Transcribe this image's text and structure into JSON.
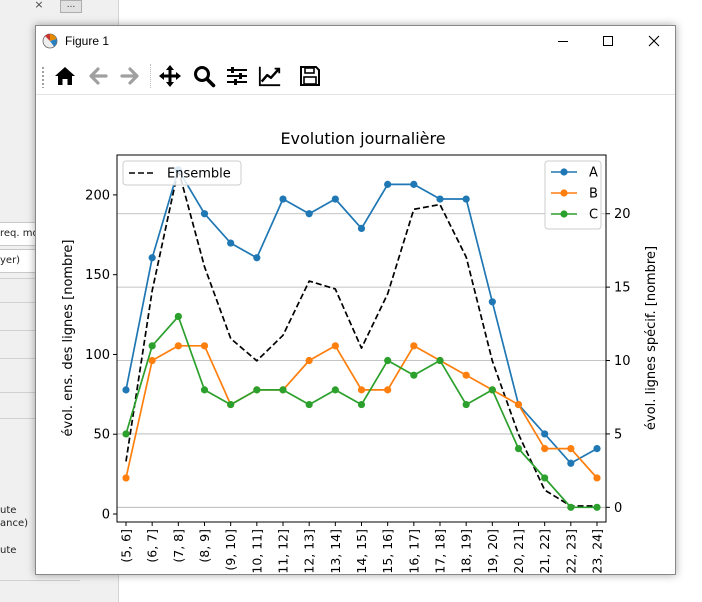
{
  "background": {
    "top_close_glyph": "×",
    "top_button_label": "...",
    "left_panel_labels": [
      "req. mo",
      "yer)",
      "ute",
      "ance)",
      "ute"
    ]
  },
  "window": {
    "title": "Figure 1",
    "controls": {
      "minimize": "—",
      "maximize": "☐",
      "close": "✕"
    },
    "toolbar": {
      "buttons": [
        "home-icon",
        "back-icon",
        "forward-icon",
        "pan-icon",
        "zoom-icon",
        "subplots-icon",
        "customize-icon",
        "save-icon"
      ]
    }
  },
  "chart_data": {
    "type": "line",
    "title": "Evolution journalière",
    "xlabel": "",
    "ylabel_left": "évol. ens. des lignes [nombre]",
    "ylabel_right": "évol. lignes spécif. [nombre]",
    "categories": [
      "(5, 6]",
      "(6, 7]",
      "(7, 8]",
      "(8, 9]",
      "(9, 10]",
      "(10, 11]",
      "(11, 12]",
      "(12, 13]",
      "(13, 14]",
      "(14, 15]",
      "(15, 16]",
      "(16, 17]",
      "(17, 18]",
      "(18, 19]",
      "(19, 20]",
      "(20, 21]",
      "(21, 22]",
      "(22, 23]",
      "(23, 24]"
    ],
    "left_axis": {
      "ylim": [
        -5,
        225
      ],
      "ticks": [
        0,
        50,
        100,
        150,
        200
      ]
    },
    "right_axis": {
      "ylim": [
        -1,
        24
      ],
      "ticks": [
        0,
        5,
        10,
        15,
        20
      ]
    },
    "grid": "horizontal on right-axis ticks",
    "legend_left": {
      "placement": "upper left",
      "entries": [
        "Ensemble"
      ]
    },
    "legend_right": {
      "placement": "upper right",
      "entries": [
        "A",
        "B",
        "C"
      ]
    },
    "series": [
      {
        "name": "Ensemble",
        "axis": "left",
        "style": "dashed",
        "color": "#000000",
        "values": [
          33,
          140,
          216,
          155,
          110,
          96,
          112,
          146,
          141,
          104,
          138,
          191,
          194,
          161,
          96,
          50,
          15,
          5,
          5
        ]
      },
      {
        "name": "A",
        "axis": "right",
        "style": "solid-marker",
        "color": "#1f77b4",
        "values": [
          8,
          17,
          23,
          20,
          18,
          17,
          21,
          20,
          21,
          19,
          22,
          22,
          21,
          21,
          14,
          7,
          5,
          3,
          4
        ]
      },
      {
        "name": "B",
        "axis": "right",
        "style": "solid-marker",
        "color": "#ff7f0e",
        "values": [
          2,
          10,
          11,
          11,
          7,
          8,
          8,
          10,
          11,
          8,
          8,
          11,
          10,
          9,
          8,
          7,
          4,
          4,
          2
        ]
      },
      {
        "name": "C",
        "axis": "right",
        "style": "solid-marker",
        "color": "#2ca02c",
        "values": [
          5,
          11,
          13,
          8,
          7,
          8,
          8,
          7,
          8,
          7,
          10,
          9,
          10,
          7,
          8,
          4,
          2,
          0,
          0
        ]
      }
    ]
  }
}
